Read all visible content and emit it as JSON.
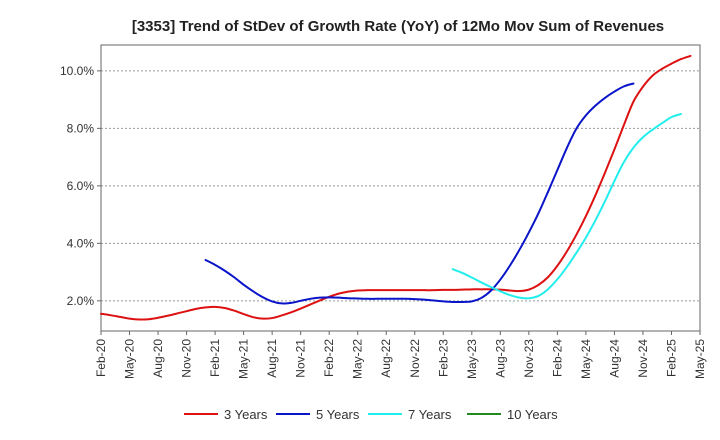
{
  "chart_data": {
    "type": "line",
    "title": "[3353]  Trend of StDev of Growth Rate (YoY) of 12Mo Mov Sum of Revenues",
    "xlabel": "",
    "ylabel": "",
    "x_tick_labels": [
      "Feb-20",
      "May-20",
      "Aug-20",
      "Nov-20",
      "Feb-21",
      "May-21",
      "Aug-21",
      "Nov-21",
      "Feb-22",
      "May-22",
      "Aug-22",
      "Nov-22",
      "Feb-23",
      "May-23",
      "Aug-23",
      "Nov-23",
      "Feb-24",
      "May-24",
      "Aug-24",
      "Nov-24",
      "Feb-25",
      "May-25"
    ],
    "y_ticks": [
      2.0,
      4.0,
      6.0,
      8.0,
      10.0
    ],
    "y_tick_labels": [
      "2.0%",
      "4.0%",
      "6.0%",
      "8.0%",
      "10.0%"
    ],
    "ylim": [
      0.95,
      10.9
    ],
    "x_count": 64,
    "grid": true,
    "legend_position": "bottom",
    "series": [
      {
        "name": "3 Years",
        "color": "#dd1111",
        "start_index": 0,
        "values": [
          1.55,
          1.5,
          1.44,
          1.38,
          1.35,
          1.36,
          1.41,
          1.48,
          1.56,
          1.64,
          1.72,
          1.77,
          1.79,
          1.75,
          1.66,
          1.54,
          1.43,
          1.38,
          1.4,
          1.49,
          1.6,
          1.73,
          1.87,
          2.01,
          2.14,
          2.25,
          2.32,
          2.36,
          2.37,
          2.37,
          2.37,
          2.37,
          2.37,
          2.37,
          2.37,
          2.37,
          2.38,
          2.38,
          2.39,
          2.4,
          2.4,
          2.4,
          2.39,
          2.36,
          2.34,
          2.39,
          2.55,
          2.82,
          3.22,
          3.72,
          4.3,
          4.95,
          5.67,
          6.45,
          7.27,
          8.12,
          8.93,
          9.45,
          9.83,
          10.07,
          10.25,
          10.41,
          10.52
        ]
      },
      {
        "name": "5 Years",
        "color": "#0a14c8",
        "start_index": 11,
        "values": [
          3.42,
          3.25,
          3.05,
          2.82,
          2.56,
          2.33,
          2.13,
          1.98,
          1.91,
          1.93,
          2.0,
          2.07,
          2.11,
          2.12,
          2.11,
          2.09,
          2.08,
          2.07,
          2.07,
          2.07,
          2.07,
          2.07,
          2.06,
          2.04,
          2.01,
          1.98,
          1.96,
          1.96,
          1.98,
          2.1,
          2.35,
          2.74,
          3.22,
          3.77,
          4.38,
          5.04,
          5.78,
          6.55,
          7.32,
          7.99,
          8.45,
          8.79,
          9.06,
          9.28,
          9.46,
          9.56
        ]
      },
      {
        "name": "7 Years",
        "color": "#22eeee",
        "start_index": 37,
        "values": [
          3.1,
          2.97,
          2.81,
          2.64,
          2.48,
          2.33,
          2.2,
          2.11,
          2.09,
          2.17,
          2.4,
          2.75,
          3.18,
          3.67,
          4.2,
          4.8,
          5.46,
          6.17,
          6.83,
          7.33,
          7.69,
          7.95,
          8.18,
          8.39,
          8.5
        ]
      },
      {
        "name": "10 Years",
        "color": "#228822",
        "start_index": 0,
        "values": []
      }
    ]
  }
}
